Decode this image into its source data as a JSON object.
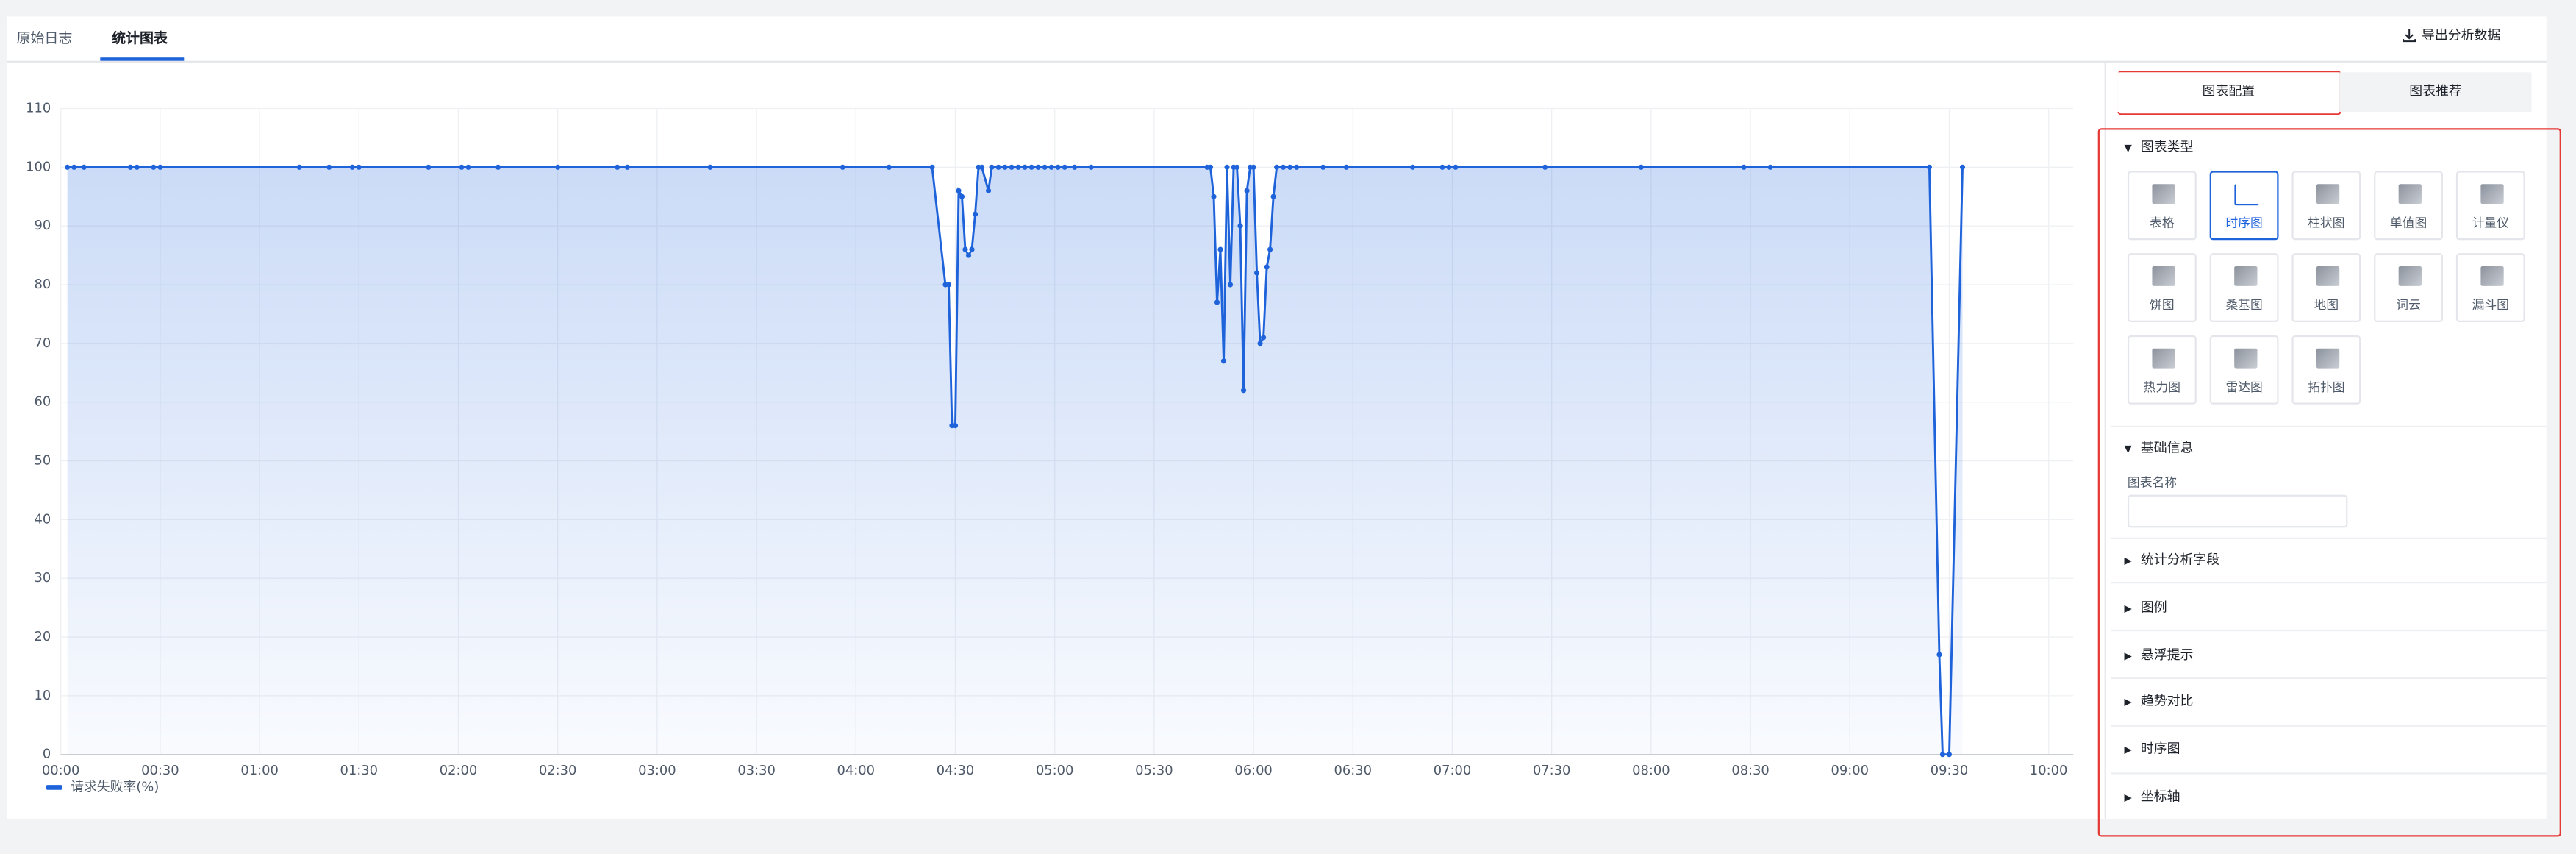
{
  "tabs": [
    {
      "label": "原始日志"
    },
    {
      "label": "统计图表",
      "active": true
    }
  ],
  "export_button": "导出分析数据",
  "chart_data": {
    "type": "line",
    "x": [
      "00:02",
      "00:04",
      "00:07",
      "00:21",
      "00:23",
      "00:28",
      "00:30",
      "01:12",
      "01:21",
      "01:28",
      "01:30",
      "01:51",
      "02:01",
      "02:03",
      "02:12",
      "02:30",
      "02:48",
      "02:51",
      "03:16",
      "03:56",
      "04:10",
      "04:23",
      "04:27",
      "04:28",
      "04:29",
      "04:30",
      "04:31",
      "04:32",
      "04:33",
      "04:34",
      "04:35",
      "04:36",
      "04:37",
      "04:38",
      "04:40",
      "04:41",
      "04:43",
      "04:45",
      "04:47",
      "04:49",
      "04:51",
      "04:53",
      "04:55",
      "04:57",
      "04:59",
      "05:01",
      "05:03",
      "05:06",
      "05:11",
      "05:46",
      "05:47",
      "05:48",
      "05:49",
      "05:50",
      "05:51",
      "05:52",
      "05:53",
      "05:54",
      "05:55",
      "05:56",
      "05:57",
      "05:58",
      "05:59",
      "06:00",
      "06:01",
      "06:02",
      "06:03",
      "06:04",
      "06:05",
      "06:06",
      "06:07",
      "06:09",
      "06:11",
      "06:13",
      "06:21",
      "06:28",
      "06:48",
      "06:57",
      "06:59",
      "07:01",
      "07:28",
      "07:57",
      "08:28",
      "08:36",
      "09:24",
      "09:27",
      "09:28",
      "09:30",
      "09:34"
    ],
    "series": [
      {
        "name": "请求失败率(%)",
        "color": "#1f63db",
        "values": [
          100,
          100,
          100,
          100,
          100,
          100,
          100,
          100,
          100,
          100,
          100,
          100,
          100,
          100,
          100,
          100,
          100,
          100,
          100,
          100,
          100,
          100,
          80,
          80,
          56,
          56,
          96,
          95,
          86,
          85,
          86,
          92,
          100,
          100,
          96,
          100,
          100,
          100,
          100,
          100,
          100,
          100,
          100,
          100,
          100,
          100,
          100,
          100,
          100,
          100,
          100,
          95,
          77,
          86,
          67,
          100,
          80,
          100,
          100,
          90,
          62,
          96,
          100,
          100,
          82,
          70,
          71,
          83,
          86,
          95,
          100,
          100,
          100,
          100,
          100,
          100,
          100,
          100,
          100,
          100,
          100,
          100,
          100,
          100,
          100,
          17,
          0,
          0,
          100
        ]
      }
    ],
    "xlim": [
      "00:00",
      "10:00"
    ],
    "xticks": [
      "00:00",
      "00:30",
      "01:00",
      "01:30",
      "02:00",
      "02:30",
      "03:00",
      "03:30",
      "04:00",
      "04:30",
      "05:00",
      "05:30",
      "06:00",
      "06:30",
      "07:00",
      "07:30",
      "08:00",
      "08:30",
      "09:00",
      "09:30",
      "10:00"
    ],
    "ylim": [
      0,
      110
    ],
    "yticks": [
      0,
      10,
      20,
      30,
      40,
      50,
      60,
      70,
      80,
      90,
      100,
      110
    ],
    "grid": true,
    "legend": "bottom-left"
  },
  "config_panel": {
    "tabs": [
      {
        "label": "图表配置",
        "active": true
      },
      {
        "label": "图表推荐"
      }
    ],
    "chart_type_section": {
      "title": "图表类型",
      "expanded": true,
      "types": [
        {
          "label": "表格"
        },
        {
          "label": "时序图",
          "selected": true
        },
        {
          "label": "柱状图"
        },
        {
          "label": "单值图"
        },
        {
          "label": "计量仪"
        },
        {
          "label": "饼图"
        },
        {
          "label": "桑基图"
        },
        {
          "label": "地图"
        },
        {
          "label": "词云"
        },
        {
          "label": "漏斗图"
        },
        {
          "label": "热力图"
        },
        {
          "label": "雷达图"
        },
        {
          "label": "拓扑图"
        }
      ]
    },
    "basic_info": {
      "title": "基础信息",
      "expanded": true,
      "name_label": "图表名称"
    },
    "sections": [
      "统计分析字段",
      "图例",
      "悬浮提示",
      "趋势对比",
      "时序图",
      "坐标轴"
    ]
  }
}
